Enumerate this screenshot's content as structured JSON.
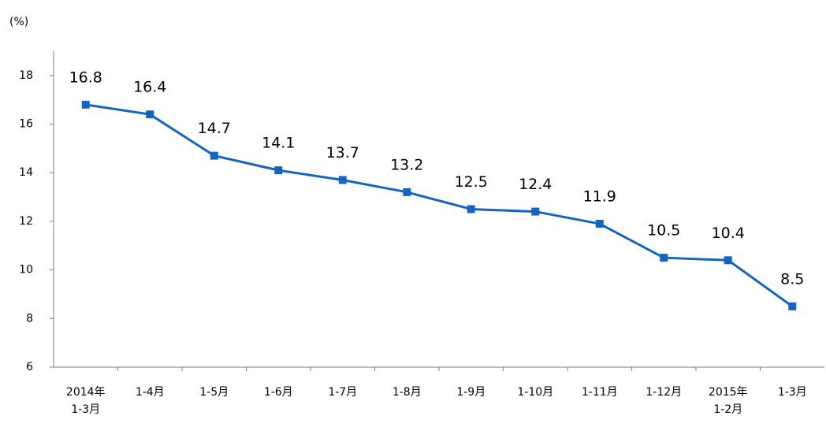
{
  "chart_data": {
    "type": "line",
    "unit_label": "(%)",
    "categories": [
      "2014年\n1-3月",
      "1-4月",
      "1-5月",
      "1-6月",
      "1-7月",
      "1-8月",
      "1-9月",
      "1-10月",
      "1-11月",
      "1-12月",
      "2015年\n1-2月",
      "1-3月"
    ],
    "series": [
      {
        "name": "",
        "color": "#1565c0",
        "values": [
          16.8,
          16.4,
          14.7,
          14.1,
          13.7,
          13.2,
          12.5,
          12.4,
          11.9,
          10.5,
          10.4,
          8.5
        ]
      }
    ],
    "ylim": [
      6,
      19
    ],
    "yticks": [
      6,
      8,
      10,
      12,
      14,
      16,
      18
    ],
    "grid": false
  }
}
